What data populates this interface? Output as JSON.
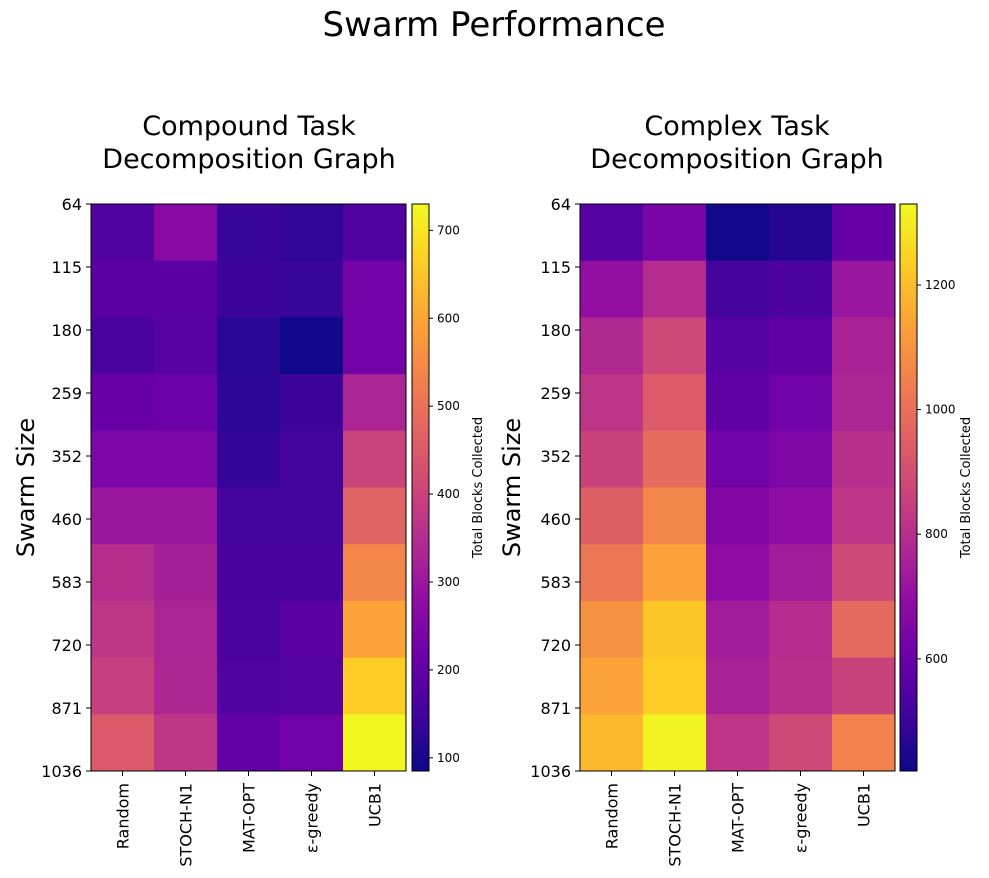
{
  "figure": {
    "title": "Swarm Performance"
  },
  "chart_data": [
    {
      "type": "heatmap",
      "title_lines": [
        "Compound Task",
        "Decomposition Graph"
      ],
      "ylabel": "Swarm Size",
      "y_ticks": [
        "64",
        "115",
        "180",
        "259",
        "352",
        "460",
        "583",
        "720",
        "871",
        "1036"
      ],
      "x_ticks": [
        "Random",
        "STOCH-N1",
        "MAT-OPT",
        "ε-greedy",
        "UCB1"
      ],
      "colormap": "plasma",
      "colorbar": {
        "label": "Total Blocks Collected",
        "min": 85,
        "max": 730,
        "ticks": [
          "100",
          "200",
          "300",
          "400",
          "500",
          "600",
          "700"
        ]
      },
      "values": [
        [
          175,
          265,
          140,
          130,
          175
        ],
        [
          190,
          190,
          145,
          140,
          230
        ],
        [
          165,
          185,
          120,
          90,
          230
        ],
        [
          210,
          220,
          125,
          145,
          330
        ],
        [
          245,
          245,
          135,
          155,
          400
        ],
        [
          300,
          300,
          155,
          155,
          470
        ],
        [
          350,
          320,
          160,
          160,
          540
        ],
        [
          370,
          330,
          165,
          190,
          595
        ],
        [
          390,
          335,
          175,
          180,
          665
        ],
        [
          450,
          370,
          200,
          225,
          725
        ]
      ]
    },
    {
      "type": "heatmap",
      "title_lines": [
        "Complex Task",
        "Decomposition Graph"
      ],
      "ylabel": "Swarm Size",
      "y_ticks": [
        "64",
        "115",
        "180",
        "259",
        "352",
        "460",
        "583",
        "720",
        "871",
        "1036"
      ],
      "x_ticks": [
        "Random",
        "STOCH-N1",
        "MAT-OPT",
        "ε-greedy",
        "UCB1"
      ],
      "colormap": "plasma",
      "colorbar": {
        "label": "Total Blocks Collected",
        "min": 420,
        "max": 1330,
        "ticks": [
          "600",
          "800",
          "1000",
          "1200"
        ]
      },
      "values": [
        [
          560,
          640,
          430,
          460,
          590
        ],
        [
          700,
          790,
          520,
          540,
          720
        ],
        [
          780,
          880,
          560,
          580,
          760
        ],
        [
          820,
          940,
          580,
          620,
          770
        ],
        [
          860,
          990,
          620,
          650,
          800
        ],
        [
          950,
          1060,
          660,
          690,
          820
        ],
        [
          1020,
          1140,
          690,
          740,
          880
        ],
        [
          1090,
          1220,
          740,
          790,
          980
        ],
        [
          1140,
          1240,
          760,
          800,
          860
        ],
        [
          1190,
          1320,
          820,
          880,
          1050
        ]
      ]
    }
  ]
}
